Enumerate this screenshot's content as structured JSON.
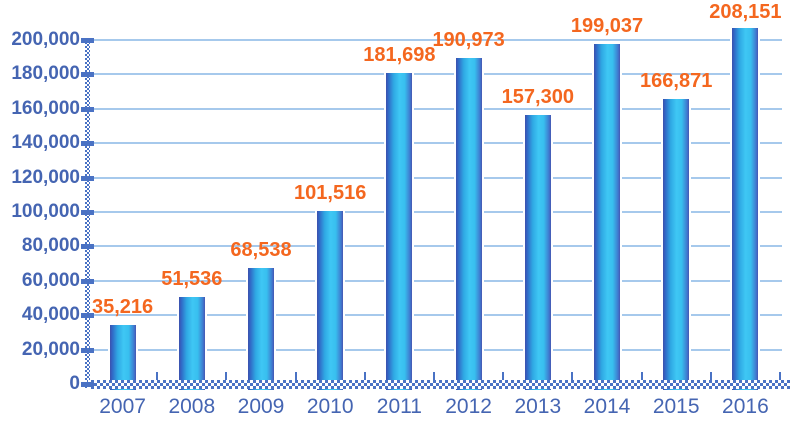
{
  "chart_data": {
    "type": "bar",
    "title": "",
    "xlabel": "",
    "ylabel": "",
    "categories": [
      "2007",
      "2008",
      "2009",
      "2010",
      "2011",
      "2012",
      "2013",
      "2014",
      "2015",
      "2016"
    ],
    "values": [
      35216,
      51536,
      68538,
      101516,
      181698,
      190973,
      157300,
      199037,
      166871,
      208151
    ],
    "value_labels": [
      "35,216",
      "51,536",
      "68,538",
      "101,516",
      "181,698",
      "190,973",
      "157,300",
      "199,037",
      "166,871",
      "208,151"
    ],
    "ylim": [
      0,
      200000
    ],
    "ytick_step": 20000,
    "ytick_labels": [
      "0",
      "20,000",
      "40,000",
      "60,000",
      "80,000",
      "100,000",
      "120,000",
      "140,000",
      "160,000",
      "180,000",
      "200,000"
    ],
    "grid": true,
    "legend_position": "none",
    "colors": {
      "bar_edge_dark": "#3C50AC",
      "bar_center_light": "#3FC7F4",
      "bar_outline": "#FFFFFF",
      "data_label": "#F4671F",
      "axis_label": "#4565B2",
      "gridline": "#A6C9EC",
      "axis_pattern": "#4A72C4",
      "background": "#FFFFFF"
    }
  }
}
